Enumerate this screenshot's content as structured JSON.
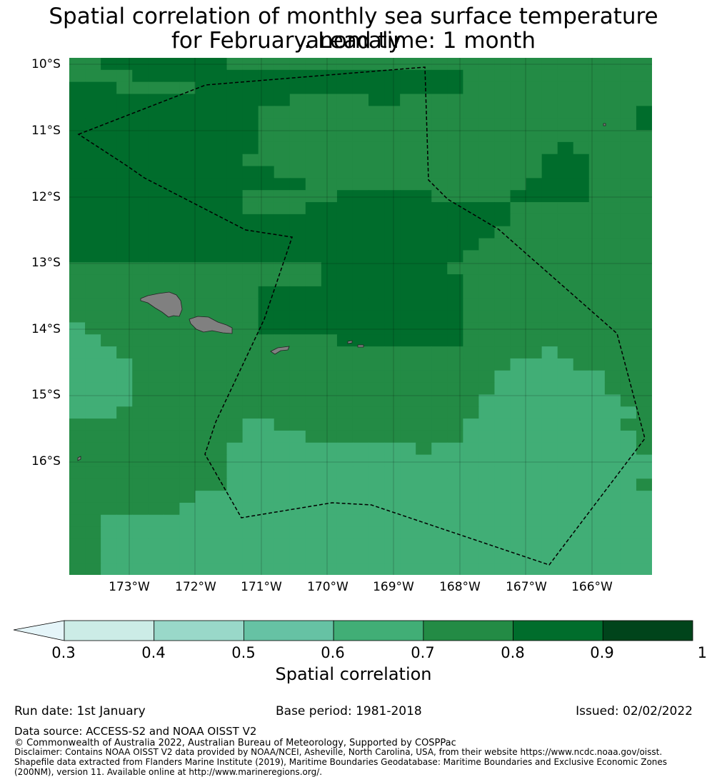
{
  "title": {
    "line1": "Spatial correlation of monthly sea surface temperature anomaly",
    "line2": "for February. Lead time: 1 month"
  },
  "map": {
    "lat_labels": [
      "10°S",
      "11°S",
      "12°S",
      "13°S",
      "14°S",
      "15°S",
      "16°S"
    ],
    "lon_labels": [
      "173°W",
      "172°W",
      "171°W",
      "170°W",
      "169°W",
      "168°W",
      "167°W",
      "166°W"
    ],
    "land_color": "#808080",
    "boundary_style": "dashed black line (EEZ)"
  },
  "chart_data": {
    "type": "heatmap",
    "grid_rows_top_to_bottom": [
      "7788888888777777777777777777777777777",
      "7777888888888888888888888777777777777",
      "8887777788888888888888888777777777777",
      "8888888888888877777887777777777777777",
      "8888888888887777777777777777777777778",
      "8888888888887777777777777777777777778",
      "8888888888887777777777777777777777777",
      "8888888888887777777777777777777877777",
      "8888888888877777777777777777778887777",
      "8888888888888777777777777777778887777",
      "8888888888888887777777777777788887777",
      "8888888888877777788888877777888887777",
      "8888888888877778888888888888777777777",
      "8888888888888888888888888888777777777",
      "8888888888888888888888888887777777777",
      "8888888888888888888888888877777777777",
      "8888888888888888888888888777777777777",
      "7777777777777777888888887777777777777",
      "7777777777777777888888888777777777777",
      "7777777777778888888888888777777777777",
      "7777777777778888888888888777777777777",
      "7777777777778888888888888777777777777",
      "6777777777778888888888888777777777777",
      "6677777777777777788888888777777777777",
      "6667777777777777777777777777776777777",
      "6666777777777777777777777777666677777",
      "6666777777777777777777777776666666777",
      "6666777777777777777777777776666666777",
      "6666777777777777777777777766666666677",
      "6667777777777777777777777766666666667",
      "7777777777766777777777777666666666677",
      "7777777777766667777777777666666666667",
      "7777777777666666666666766666666666667",
      "7777777777666666666666666666666666666",
      "7777777777666666666666666666666666666",
      "7777777777666666666666666666666666667",
      "7777777766666666666666666666666666666",
      "7777777666666666666666666666666666666",
      "7766666666666666666666666666666666666",
      "7766666666666666666666666666666666666",
      "7766666666666666666666666666666666666",
      "7766666666666666666666666666666666666",
      "7766666666666666666666666666666666666"
    ],
    "class_values": {
      "6": [
        0.6,
        0.7
      ],
      "7": [
        0.7,
        0.8
      ],
      "8": [
        0.8,
        0.9
      ]
    },
    "xlim": [
      "173°55'W",
      "166°10'W"
    ],
    "ylim": [
      "17°45'S",
      "9°55'S"
    ],
    "colorbar": {
      "label": "Spatial correlation",
      "ticks": [
        "0.3",
        "0.4",
        "0.5",
        "0.6",
        "0.7",
        "0.8",
        "0.9",
        "1"
      ],
      "extend": "min",
      "colors": [
        "#ccece6",
        "#99d8c9",
        "#66c2a4",
        "#41ae76",
        "#238b45",
        "#006d2c",
        "#00441b"
      ],
      "extend_color": "#e5f5f9"
    }
  },
  "footer": {
    "run_date": "Run date: 1st January",
    "base_period": "Base period: 1981-2018",
    "issued": "Issued: 02/02/2022",
    "data_source": "Data source: ACCESS-S2 and NOAA OISST V2",
    "copyright": "© Commonwealth of Australia 2022, Australian Bureau of Meteorology, Supported by COSPPac",
    "disclaimer": "Disclaimer: Contains NOAA OISST V2 data provided by NOAA/NCEI, Asheville, North Carolina, USA, from their website https://www.ncdc.noaa.gov/oisst. Shapefile data extracted from Flanders Marine Institute (2019), Maritime Boundaries Geodatabase: Maritime Boundaries and Exclusive Economic Zones (200NM), version 11. Available online at http://www.marineregions.org/."
  }
}
